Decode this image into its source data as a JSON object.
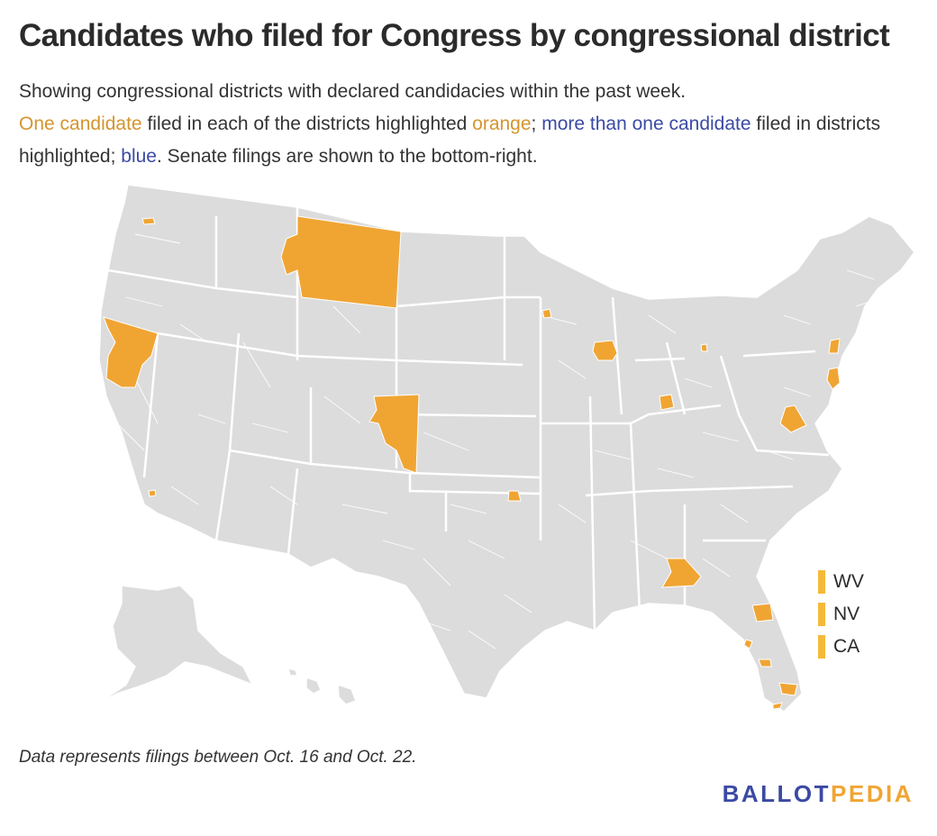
{
  "title": "Candidates who filed for Congress by congressional district",
  "subtitle": {
    "line1": "Showing congressional districts with declared candidacies within the past week.",
    "one_candidate": "One candidate",
    "filed_each": " filed in each of the districts highlighted ",
    "orange_word": "orange",
    "semicolon": "; ",
    "more_than_one": "more than one candidate",
    "filed_in": " filed in districts highlighted; ",
    "blue_word": "blue",
    "senate_note": ". Senate filings are shown to the bottom-right."
  },
  "colors": {
    "orange": "#f0a533",
    "blue": "#3b4aa3",
    "land": "#dcdcdc",
    "border": "#ffffff"
  },
  "senate_legend": [
    {
      "label": "WV"
    },
    {
      "label": "NV"
    },
    {
      "label": "CA"
    }
  ],
  "highlighted_districts": [
    "MT-AL",
    "NV-2",
    "CO-3",
    "WA-9",
    "MN-5",
    "IL-14",
    "IN-6",
    "MI-5",
    "NY-18",
    "NJ-7",
    "VA-5",
    "OK-5",
    "AL-2",
    "FL-11",
    "FL-13",
    "FL-19",
    "FL-27",
    "CA-36"
  ],
  "footnote": "Data represents filings between Oct. 16 and Oct. 22.",
  "logo": {
    "part1": "BALLOT",
    "part2": "PEDIA"
  }
}
